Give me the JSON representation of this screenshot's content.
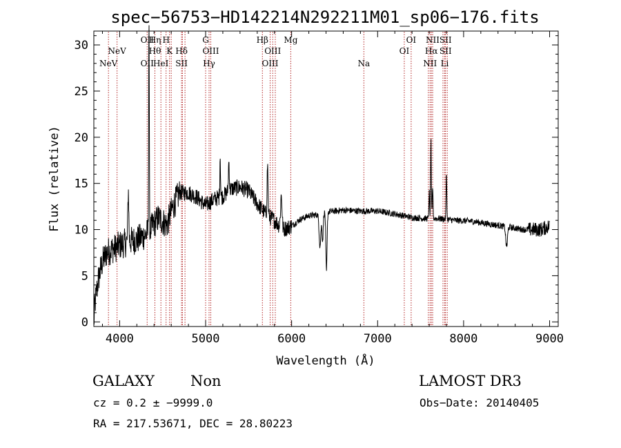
{
  "chart_data": {
    "type": "line",
    "title": "spec−56753−HD142214N292211M01_sp06−176.fits",
    "xlabel": "Wavelength (Å)",
    "ylabel": "Flux (relative)",
    "xlim": [
      3700,
      9100
    ],
    "ylim": [
      -0.5,
      31.5
    ],
    "xticks": [
      4000,
      5000,
      6000,
      7000,
      8000,
      9000
    ],
    "yticks": [
      0,
      5,
      10,
      15,
      20,
      25,
      30
    ],
    "spectrum_anchors": [
      [
        3700,
        1.0
      ],
      [
        3750,
        4.5
      ],
      [
        3800,
        6.5
      ],
      [
        3850,
        7.5
      ],
      [
        3900,
        7.8
      ],
      [
        3950,
        8.0
      ],
      [
        4000,
        8.3
      ],
      [
        4100,
        8.7
      ],
      [
        4200,
        8.9
      ],
      [
        4300,
        9.4
      ],
      [
        4380,
        10.3
      ],
      [
        4450,
        11.3
      ],
      [
        4550,
        10.5
      ],
      [
        4620,
        12.5
      ],
      [
        4700,
        14.0
      ],
      [
        4800,
        14.0
      ],
      [
        4900,
        13.5
      ],
      [
        5000,
        12.6
      ],
      [
        5100,
        13.3
      ],
      [
        5200,
        13.6
      ],
      [
        5300,
        14.4
      ],
      [
        5400,
        14.6
      ],
      [
        5500,
        14.2
      ],
      [
        5600,
        12.8
      ],
      [
        5700,
        11.7
      ],
      [
        5800,
        11.0
      ],
      [
        5900,
        10.0
      ],
      [
        6000,
        10.4
      ],
      [
        6100,
        11.1
      ],
      [
        6200,
        11.5
      ],
      [
        6300,
        11.6
      ],
      [
        6400,
        11.9
      ],
      [
        6600,
        12.1
      ],
      [
        6800,
        12.0
      ],
      [
        7000,
        12.0
      ],
      [
        7200,
        11.7
      ],
      [
        7400,
        11.3
      ],
      [
        7550,
        11.2
      ],
      [
        7700,
        11.2
      ],
      [
        7900,
        11.0
      ],
      [
        8100,
        10.9
      ],
      [
        8300,
        10.6
      ],
      [
        8500,
        10.3
      ],
      [
        8700,
        10.0
      ],
      [
        8900,
        10.0
      ],
      [
        9000,
        10.4
      ]
    ],
    "spectrum_features": [
      [
        4341,
        23.5,
        5
      ],
      [
        4101,
        5.5,
        8
      ],
      [
        5169,
        4.5,
        6
      ],
      [
        5270,
        3.2,
        8
      ],
      [
        5720,
        5.5,
        8
      ],
      [
        5880,
        3.5,
        12
      ],
      [
        6330,
        -3.5,
        14
      ],
      [
        6360,
        -3.0,
        10
      ],
      [
        6405,
        -6.5,
        10
      ],
      [
        7600,
        2.8,
        6
      ],
      [
        7620,
        8.5,
        6
      ],
      [
        7640,
        3.5,
        6
      ],
      [
        7800,
        5.0,
        6
      ],
      [
        8500,
        -2.2,
        14
      ],
      [
        3700,
        -1.0,
        8
      ]
    ],
    "spectral_lines": [
      {
        "w": 3870,
        "label": "NeV",
        "row": 3
      },
      {
        "w": 3970,
        "label": "NeV",
        "row": 2
      },
      {
        "w": 4320,
        "label": "OII",
        "row": 1
      },
      {
        "w": 4320,
        "label": "OII",
        "row": 3
      },
      {
        "w": 4410,
        "label": "Hη",
        "row": 1
      },
      {
        "w": 4410,
        "label": "Hθ",
        "row": 2
      },
      {
        "w": 4480,
        "label": "HeI",
        "row": 3
      },
      {
        "w": 4540,
        "label": "H",
        "row": 1
      },
      {
        "w": 4580,
        "label": "K",
        "row": 2
      },
      {
        "w": 4720,
        "label": "Hδ",
        "row": 2
      },
      {
        "w": 4720,
        "label": "SII",
        "row": 3
      },
      {
        "w": 5000,
        "label": "G",
        "row": 1
      },
      {
        "w": 5060,
        "label": "OIII",
        "row": 2
      },
      {
        "w": 5040,
        "label": "Hγ",
        "row": 3
      },
      {
        "w": 5660,
        "label": "Hβ",
        "row": 1
      },
      {
        "w": 5780,
        "label": "OIII",
        "row": 2
      },
      {
        "w": 5750,
        "label": "OIII",
        "row": 3
      },
      {
        "w": 5990,
        "label": "Mg",
        "row": 1
      },
      {
        "w": 6840,
        "label": "Na",
        "row": 3
      },
      {
        "w": 7390,
        "label": "OI",
        "row": 1
      },
      {
        "w": 7310,
        "label": "OI",
        "row": 2
      },
      {
        "w": 7640,
        "label": "NII",
        "row": 1
      },
      {
        "w": 7625,
        "label": "Hα",
        "row": 2
      },
      {
        "w": 7610,
        "label": "NII",
        "row": 3
      },
      {
        "w": 7790,
        "label": "SII",
        "row": 1
      },
      {
        "w": 7790,
        "label": "SII",
        "row": 2
      },
      {
        "w": 7780,
        "label": "Li",
        "row": 3
      }
    ],
    "extra_line_marks": [
      3870,
      3970,
      4320,
      4410,
      4480,
      4540,
      4600,
      4730,
      4760,
      5000,
      5040,
      5660,
      5750,
      5810,
      5990,
      6840,
      7310,
      7390,
      7590,
      7610,
      7640,
      7760,
      7790,
      7810
    ]
  },
  "info": {
    "object_class": "GALAXY",
    "subclass": "Non",
    "survey": "LAMOST DR3",
    "cz": "cz = 0.2 ± −9999.0",
    "obs_date": "Obs−Date: 20140405",
    "coords": "RA = 217.53671, DEC =  28.80223"
  },
  "colors": {
    "line_marker": "#b22222",
    "spectrum": "#000000"
  }
}
